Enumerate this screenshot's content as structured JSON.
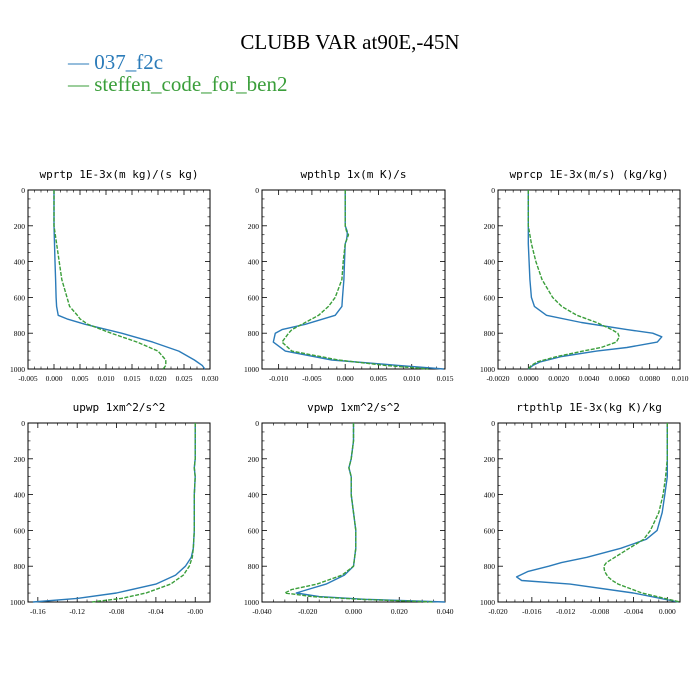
{
  "figure": {
    "title": "CLUBB VAR at90E,-45N",
    "legend": [
      {
        "label": "037_f2c",
        "color": "#2b7bb9"
      },
      {
        "label": "steffen_code_for_ben2",
        "color": "#3a9e3a"
      }
    ]
  },
  "chart_data": [
    {
      "type": "line",
      "title": "wprtp  1E-3x(m kg)/(s kg)",
      "xlim": [
        -0.005,
        0.03
      ],
      "ylim": [
        1000,
        0
      ],
      "xticks": [
        -0.005,
        0.0,
        0.005,
        0.01,
        0.015,
        0.02,
        0.025,
        0.03
      ],
      "xtick_labels": [
        "-0.005",
        "0.000",
        "0.005",
        "0.010",
        "0.015",
        "0.020",
        "0.025",
        "0.030"
      ],
      "yticks": [
        0,
        200,
        400,
        600,
        800,
        1000
      ],
      "ytick_labels": [
        "0",
        "200",
        "400",
        "600",
        "800",
        "1000"
      ],
      "y": [
        0,
        100,
        200,
        300,
        400,
        500,
        600,
        650,
        700,
        720,
        750,
        800,
        850,
        900,
        950,
        980,
        1000
      ],
      "series": [
        {
          "name": "037_f2c",
          "values": [
            0.0,
            0.0,
            0.0,
            0.0001,
            0.0002,
            0.0003,
            0.0004,
            0.0005,
            0.0008,
            0.0025,
            0.006,
            0.013,
            0.019,
            0.024,
            0.027,
            0.0285,
            0.029
          ]
        },
        {
          "name": "steffen_code_for_ben2",
          "values": [
            0.0,
            0.0,
            0.0,
            0.0005,
            0.001,
            0.0015,
            0.0025,
            0.003,
            0.0045,
            0.005,
            0.0065,
            0.011,
            0.016,
            0.02,
            0.0215,
            0.0215,
            0.021
          ]
        }
      ]
    },
    {
      "type": "line",
      "title": "wpthlp  1x(m K)/s",
      "xlim": [
        -0.0125,
        0.015
      ],
      "ylim": [
        1000,
        0
      ],
      "xticks": [
        -0.01,
        -0.005,
        0.0,
        0.005,
        0.01,
        0.015
      ],
      "xtick_labels": [
        "-0.010",
        "-0.005",
        "0.000",
        "0.005",
        "0.010",
        "0.015"
      ],
      "yticks": [
        0,
        200,
        400,
        600,
        800,
        1000
      ],
      "ytick_labels": [
        "0",
        "200",
        "400",
        "600",
        "800",
        "1000"
      ],
      "y": [
        0,
        100,
        200,
        230,
        250,
        280,
        300,
        400,
        500,
        600,
        650,
        700,
        750,
        780,
        800,
        850,
        900,
        950,
        980,
        1000
      ],
      "series": [
        {
          "name": "037_f2c",
          "values": [
            0.0,
            0.0,
            0.0,
            0.0003,
            0.0003,
            0.0002,
            0.0,
            -0.0001,
            -0.0002,
            -0.0004,
            -0.0005,
            -0.0015,
            -0.006,
            -0.0095,
            -0.0105,
            -0.0108,
            -0.009,
            -0.002,
            0.008,
            0.0148
          ]
        },
        {
          "name": "steffen_code_for_ben2",
          "values": [
            0.0,
            0.0,
            0.0,
            0.0002,
            0.0005,
            0.0002,
            0.0,
            -0.0003,
            -0.0005,
            -0.0015,
            -0.0025,
            -0.004,
            -0.0065,
            -0.008,
            -0.0085,
            -0.0095,
            -0.008,
            -0.001,
            0.006,
            0.0125
          ]
        }
      ]
    },
    {
      "type": "line",
      "title": "wprcp  1E-3x(m/s) (kg/kg)",
      "xlim": [
        -0.002,
        0.01
      ],
      "ylim": [
        1000,
        0
      ],
      "xticks": [
        -0.002,
        0.0,
        0.002,
        0.004,
        0.006,
        0.008,
        0.01
      ],
      "xtick_labels": [
        "-0.0020",
        "0.0000",
        "0.0020",
        "0.0040",
        "0.0060",
        "0.0080",
        "0.010"
      ],
      "yticks": [
        0,
        200,
        400,
        600,
        800,
        1000
      ],
      "ytick_labels": [
        "0",
        "200",
        "400",
        "600",
        "800",
        "1000"
      ],
      "y": [
        0,
        100,
        200,
        300,
        400,
        500,
        600,
        650,
        700,
        740,
        780,
        800,
        820,
        850,
        880,
        900,
        930,
        960,
        980,
        1000
      ],
      "series": [
        {
          "name": "037_f2c",
          "values": [
            0.0,
            0.0,
            0.0,
            0.0,
            5e-05,
            0.0001,
            0.0002,
            0.0004,
            0.0012,
            0.0035,
            0.0065,
            0.0082,
            0.0088,
            0.0085,
            0.0065,
            0.0045,
            0.0022,
            0.0008,
            0.0003,
            0.0
          ]
        },
        {
          "name": "steffen_code_for_ben2",
          "values": [
            0.0,
            0.0,
            0.0,
            0.0002,
            0.0005,
            0.0009,
            0.0016,
            0.0022,
            0.0032,
            0.0045,
            0.0055,
            0.0059,
            0.006,
            0.0058,
            0.0048,
            0.0036,
            0.0019,
            0.0006,
            0.0002,
            0.0
          ]
        }
      ]
    },
    {
      "type": "line",
      "title": "upwp  1xm^2/s^2",
      "xlim": [
        -0.17,
        0.015
      ],
      "ylim": [
        1000,
        0
      ],
      "xticks": [
        -0.16,
        -0.12,
        -0.08,
        -0.04,
        0.0
      ],
      "xtick_labels": [
        "-0.16",
        "-0.12",
        "-0.08",
        "-0.04",
        "-0.00"
      ],
      "yticks": [
        0,
        200,
        400,
        600,
        800,
        1000
      ],
      "ytick_labels": [
        "0",
        "200",
        "400",
        "600",
        "800",
        "1000"
      ],
      "y": [
        0,
        100,
        200,
        250,
        300,
        400,
        500,
        600,
        700,
        750,
        800,
        850,
        900,
        950,
        980,
        1000
      ],
      "series": [
        {
          "name": "037_f2c",
          "values": [
            0.0,
            0.0,
            0.0,
            -0.001,
            0.0,
            -0.001,
            -0.001,
            -0.001,
            -0.002,
            -0.004,
            -0.01,
            -0.02,
            -0.04,
            -0.08,
            -0.12,
            -0.165
          ]
        },
        {
          "name": "steffen_code_for_ben2",
          "values": [
            0.0,
            0.0,
            0.0,
            -0.001,
            0.0,
            -0.001,
            -0.001,
            -0.001,
            -0.002,
            -0.003,
            -0.006,
            -0.012,
            -0.025,
            -0.05,
            -0.075,
            -0.105
          ]
        }
      ]
    },
    {
      "type": "line",
      "title": "vpwp  1xm^2/s^2",
      "xlim": [
        -0.04,
        0.04
      ],
      "ylim": [
        1000,
        0
      ],
      "xticks": [
        -0.04,
        -0.02,
        0.0,
        0.02,
        0.04
      ],
      "xtick_labels": [
        "-0.040",
        "-0.020",
        "0.000",
        "0.020",
        "0.040"
      ],
      "yticks": [
        0,
        200,
        400,
        600,
        800,
        1000
      ],
      "ytick_labels": [
        "0",
        "200",
        "400",
        "600",
        "800",
        "1000"
      ],
      "y": [
        0,
        100,
        200,
        250,
        300,
        400,
        500,
        600,
        700,
        800,
        850,
        900,
        930,
        950,
        970,
        985,
        1000
      ],
      "series": [
        {
          "name": "037_f2c",
          "values": [
            0.0,
            0.0,
            -0.001,
            -0.002,
            -0.001,
            -0.001,
            0.0,
            0.001,
            0.001,
            0.0,
            -0.004,
            -0.012,
            -0.02,
            -0.025,
            -0.015,
            0.005,
            0.04
          ]
        },
        {
          "name": "steffen_code_for_ben2",
          "values": [
            0.0,
            0.0,
            -0.001,
            -0.002,
            -0.001,
            -0.001,
            0.0,
            0.001,
            0.001,
            0.0,
            -0.005,
            -0.016,
            -0.027,
            -0.03,
            -0.018,
            0.003,
            0.035
          ]
        }
      ]
    },
    {
      "type": "line",
      "title": "rtpthlp  1E-3x(kg K)/kg",
      "xlim": [
        -0.02,
        0.0015
      ],
      "ylim": [
        1000,
        0
      ],
      "xticks": [
        -0.02,
        -0.016,
        -0.012,
        -0.008,
        -0.004,
        0.0
      ],
      "xtick_labels": [
        "-0.020",
        "-0.016",
        "-0.012",
        "-0.008",
        "-0.004",
        "0.000"
      ],
      "yticks": [
        0,
        200,
        400,
        600,
        800,
        1000
      ],
      "ytick_labels": [
        "0",
        "200",
        "400",
        "600",
        "800",
        "1000"
      ],
      "y": [
        0,
        100,
        200,
        300,
        400,
        500,
        600,
        650,
        700,
        750,
        780,
        800,
        830,
        860,
        880,
        900,
        950,
        1000
      ],
      "series": [
        {
          "name": "037_f2c",
          "values": [
            0.0,
            0.0,
            0.0,
            0.0,
            -0.0003,
            -0.0006,
            -0.0012,
            -0.0025,
            -0.0055,
            -0.0095,
            -0.0125,
            -0.014,
            -0.0165,
            -0.0178,
            -0.0172,
            -0.0115,
            -0.004,
            0.0013
          ]
        },
        {
          "name": "steffen_code_for_ben2",
          "values": [
            0.0,
            0.0,
            0.0,
            -0.0002,
            -0.0005,
            -0.001,
            -0.002,
            -0.0028,
            -0.0045,
            -0.0062,
            -0.0072,
            -0.0075,
            -0.0074,
            -0.007,
            -0.0065,
            -0.0058,
            -0.003,
            0.0015
          ]
        }
      ]
    }
  ]
}
